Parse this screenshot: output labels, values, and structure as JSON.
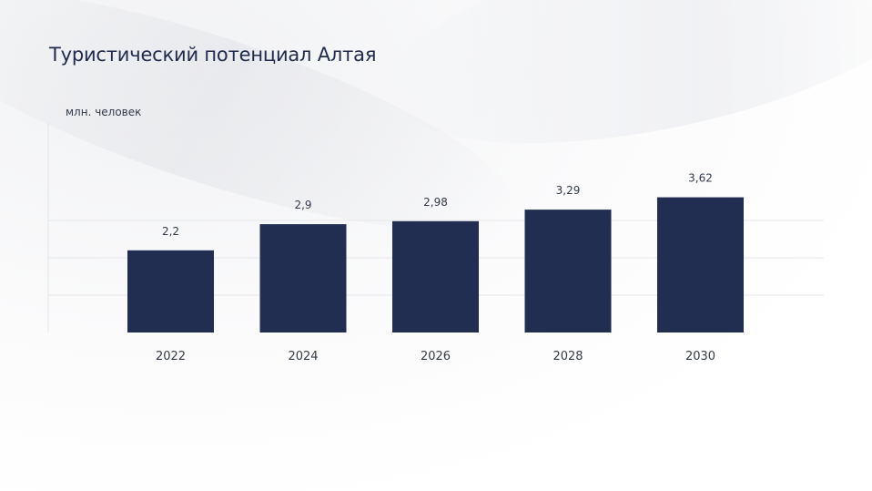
{
  "chart_data": {
    "type": "bar",
    "title": "Туристический потенциал Алтая",
    "ylabel": "млн. человек",
    "xlabel": "",
    "categories": [
      "2022",
      "2024",
      "2026",
      "2028",
      "2030"
    ],
    "values": [
      2.2,
      2.9,
      2.98,
      3.29,
      3.62
    ],
    "value_labels": [
      "2,2",
      "2,9",
      "2,98",
      "3,29",
      "3,62"
    ],
    "ylim": [
      0,
      4
    ],
    "grid": true,
    "bar_color": "#222e51"
  }
}
